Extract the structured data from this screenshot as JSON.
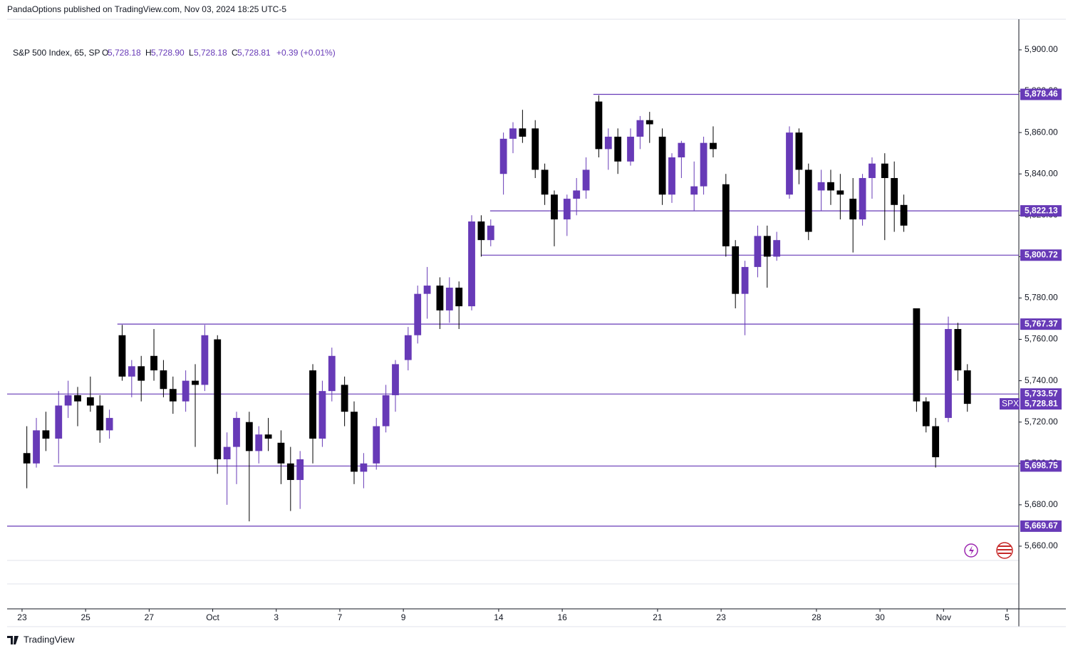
{
  "header": "PandaOptions published on TradingView.com, Nov 03, 2024 18:25 UTC-5",
  "footer": "TradingView",
  "chart_data": {
    "type": "candlestick",
    "legend": {
      "symbol": "S&P 500 Index, 65, SP",
      "open": {
        "key": "O",
        "value": "5,728.18"
      },
      "high": {
        "key": "H",
        "value": "5,728.90"
      },
      "low": {
        "key": "L",
        "value": "5,728.18"
      },
      "close": {
        "key": "C",
        "value": "5,728.81"
      },
      "change": "+0.39 (+0.01%)"
    },
    "up_color": "#673ab7",
    "down_color": "#000000",
    "level_color": "#673ab7",
    "xlim": [
      -0.47,
      31.37
    ],
    "xticks": [
      {
        "value": 0,
        "label": "23"
      },
      {
        "value": 2,
        "label": "25"
      },
      {
        "value": 4,
        "label": "27"
      },
      {
        "value": 6,
        "label": "Oct"
      },
      {
        "value": 8,
        "label": "3"
      },
      {
        "value": 10,
        "label": "7"
      },
      {
        "value": 12,
        "label": "9"
      },
      {
        "value": 15,
        "label": "14"
      },
      {
        "value": 17,
        "label": "16"
      },
      {
        "value": 20,
        "label": "21"
      },
      {
        "value": 22,
        "label": "23"
      },
      {
        "value": 25,
        "label": "28"
      },
      {
        "value": 27,
        "label": "30"
      },
      {
        "value": 29,
        "label": "Nov"
      },
      {
        "value": 31,
        "label": "5"
      }
    ],
    "ylim": [
      5653.1,
      5914.8
    ],
    "yticks": [
      {
        "value": 5660,
        "label": "5,660.00"
      },
      {
        "value": 5680,
        "label": "5,680.00"
      },
      {
        "value": 5700,
        "label": "5,700.00"
      },
      {
        "value": 5720,
        "label": "5,720.00"
      },
      {
        "value": 5740,
        "label": "5,740.00"
      },
      {
        "value": 5760,
        "label": "5,760.00"
      },
      {
        "value": 5780,
        "label": "5,780.00"
      },
      {
        "value": 5800,
        "label": "5,800.00"
      },
      {
        "value": 5820,
        "label": "5,820.00"
      },
      {
        "value": 5840,
        "label": "5,840.00"
      },
      {
        "value": 5860,
        "label": "5,860.00"
      },
      {
        "value": 5880,
        "label": "5,880.00"
      },
      {
        "value": 5900,
        "label": "5,900.00"
      }
    ],
    "levels": [
      {
        "value": 5878.46,
        "label": "5,878.46",
        "start": 17.98
      },
      {
        "value": 5822.13,
        "label": "5,822.13",
        "start": 14.73
      },
      {
        "value": 5800.72,
        "label": "5,800.72",
        "start": 14.44
      },
      {
        "value": 5767.37,
        "label": "5,767.37",
        "start": 3.0
      },
      {
        "value": 5733.57,
        "label": "5,733.57",
        "start": -0.47
      },
      {
        "value": 5698.75,
        "label": "5,698.75",
        "start": 0.99
      },
      {
        "value": 5669.67,
        "label": "5,669.67",
        "start": -0.47
      }
    ],
    "last_price": {
      "tag": "SPX",
      "value": 5728.81,
      "label": "5,728.81"
    },
    "candles": [
      [
        0.15,
        5705,
        5718,
        5688,
        5700
      ],
      [
        0.45,
        5700,
        5722,
        5698,
        5716
      ],
      [
        0.75,
        5716,
        5725,
        5706,
        5712
      ],
      [
        1.15,
        5712,
        5735,
        5700,
        5728
      ],
      [
        1.45,
        5728,
        5740,
        5722,
        5733
      ],
      [
        1.75,
        5733,
        5737,
        5718,
        5730
      ],
      [
        2.15,
        5732,
        5742,
        5725,
        5728
      ],
      [
        2.45,
        5728,
        5733,
        5710,
        5716
      ],
      [
        2.75,
        5716,
        5726,
        5712,
        5722
      ],
      [
        3.15,
        5762,
        5767,
        5740,
        5742
      ],
      [
        3.45,
        5742,
        5750,
        5732,
        5747
      ],
      [
        3.75,
        5747,
        5752,
        5730,
        5740
      ],
      [
        4.15,
        5752,
        5765,
        5740,
        5745
      ],
      [
        4.45,
        5745,
        5750,
        5732,
        5736
      ],
      [
        4.75,
        5736,
        5742,
        5724,
        5730
      ],
      [
        5.15,
        5730,
        5745,
        5725,
        5740
      ],
      [
        5.45,
        5740,
        5748,
        5708,
        5738
      ],
      [
        5.75,
        5738,
        5767,
        5735,
        5762
      ],
      [
        6.15,
        5760,
        5762,
        5695,
        5702
      ],
      [
        6.45,
        5702,
        5715,
        5680,
        5708
      ],
      [
        6.75,
        5708,
        5725,
        5690,
        5722
      ],
      [
        7.15,
        5720,
        5725,
        5672,
        5706
      ],
      [
        7.45,
        5706,
        5718,
        5700,
        5714
      ],
      [
        7.75,
        5714,
        5722,
        5706,
        5712
      ],
      [
        8.15,
        5710,
        5716,
        5690,
        5700
      ],
      [
        8.45,
        5700,
        5708,
        5677,
        5692
      ],
      [
        8.75,
        5692,
        5706,
        5678,
        5702
      ],
      [
        9.15,
        5745,
        5748,
        5700,
        5712
      ],
      [
        9.45,
        5712,
        5740,
        5708,
        5735
      ],
      [
        9.75,
        5735,
        5756,
        5730,
        5752
      ],
      [
        10.15,
        5738,
        5742,
        5718,
        5725
      ],
      [
        10.45,
        5725,
        5730,
        5690,
        5696
      ],
      [
        10.75,
        5696,
        5705,
        5688,
        5700
      ],
      [
        11.15,
        5700,
        5722,
        5697,
        5718
      ],
      [
        11.45,
        5718,
        5738,
        5715,
        5733
      ],
      [
        11.75,
        5733,
        5750,
        5725,
        5748
      ],
      [
        12.15,
        5750,
        5766,
        5745,
        5762
      ],
      [
        12.45,
        5762,
        5786,
        5758,
        5782
      ],
      [
        12.75,
        5782,
        5795,
        5770,
        5786
      ],
      [
        13.15,
        5786,
        5790,
        5765,
        5774
      ],
      [
        13.45,
        5774,
        5790,
        5768,
        5785
      ],
      [
        13.75,
        5785,
        5788,
        5765,
        5776
      ],
      [
        14.15,
        5776,
        5820,
        5774,
        5817
      ],
      [
        14.45,
        5817,
        5820,
        5800,
        5808
      ],
      [
        14.75,
        5808,
        5818,
        5805,
        5815
      ],
      [
        15.15,
        5840,
        5860,
        5830,
        5857
      ],
      [
        15.45,
        5857,
        5865,
        5850,
        5862
      ],
      [
        15.75,
        5862,
        5871,
        5855,
        5858
      ],
      [
        16.15,
        5862,
        5866,
        5838,
        5842
      ],
      [
        16.45,
        5842,
        5845,
        5825,
        5830
      ],
      [
        16.75,
        5830,
        5832,
        5805,
        5818
      ],
      [
        17.15,
        5818,
        5830,
        5810,
        5828
      ],
      [
        17.45,
        5828,
        5838,
        5820,
        5832
      ],
      [
        17.75,
        5832,
        5848,
        5828,
        5842
      ],
      [
        18.15,
        5875,
        5878,
        5848,
        5852
      ],
      [
        18.45,
        5852,
        5862,
        5842,
        5858
      ],
      [
        18.75,
        5858,
        5862,
        5840,
        5846
      ],
      [
        19.15,
        5846,
        5862,
        5844,
        5858
      ],
      [
        19.45,
        5858,
        5868,
        5852,
        5866
      ],
      [
        19.75,
        5866,
        5870,
        5855,
        5864
      ],
      [
        20.15,
        5858,
        5862,
        5825,
        5830
      ],
      [
        20.45,
        5830,
        5850,
        5826,
        5848
      ],
      [
        20.75,
        5848,
        5856,
        5838,
        5855
      ],
      [
        21.15,
        5830,
        5846,
        5822,
        5834
      ],
      [
        21.45,
        5834,
        5858,
        5830,
        5855
      ],
      [
        21.75,
        5855,
        5863,
        5848,
        5852
      ],
      [
        22.15,
        5835,
        5840,
        5800,
        5805
      ],
      [
        22.45,
        5805,
        5808,
        5775,
        5782
      ],
      [
        22.75,
        5782,
        5798,
        5762,
        5795
      ],
      [
        23.15,
        5795,
        5815,
        5790,
        5810
      ],
      [
        23.45,
        5810,
        5815,
        5785,
        5800
      ],
      [
        23.75,
        5800,
        5812,
        5798,
        5808
      ],
      [
        24.15,
        5830,
        5863,
        5828,
        5860
      ],
      [
        24.45,
        5860,
        5862,
        5835,
        5842
      ],
      [
        24.75,
        5842,
        5845,
        5808,
        5812
      ],
      [
        25.15,
        5832,
        5842,
        5822,
        5836
      ],
      [
        25.45,
        5836,
        5842,
        5825,
        5832
      ],
      [
        25.75,
        5832,
        5840,
        5818,
        5830
      ],
      [
        26.15,
        5828,
        5838,
        5802,
        5818
      ],
      [
        26.45,
        5818,
        5840,
        5815,
        5838
      ],
      [
        26.75,
        5838,
        5848,
        5828,
        5845
      ],
      [
        27.15,
        5845,
        5850,
        5808,
        5838
      ],
      [
        27.45,
        5838,
        5846,
        5812,
        5825
      ],
      [
        27.75,
        5825,
        5830,
        5812,
        5815
      ],
      [
        28.15,
        5775,
        5775,
        5725,
        5730
      ],
      [
        28.45,
        5730,
        5732,
        5715,
        5718
      ],
      [
        28.75,
        5718,
        5722,
        5698,
        5703
      ],
      [
        29.15,
        5722,
        5771,
        5720,
        5765
      ],
      [
        29.45,
        5765,
        5768,
        5740,
        5745
      ],
      [
        29.75,
        5745,
        5748,
        5725,
        5728.81
      ]
    ]
  }
}
